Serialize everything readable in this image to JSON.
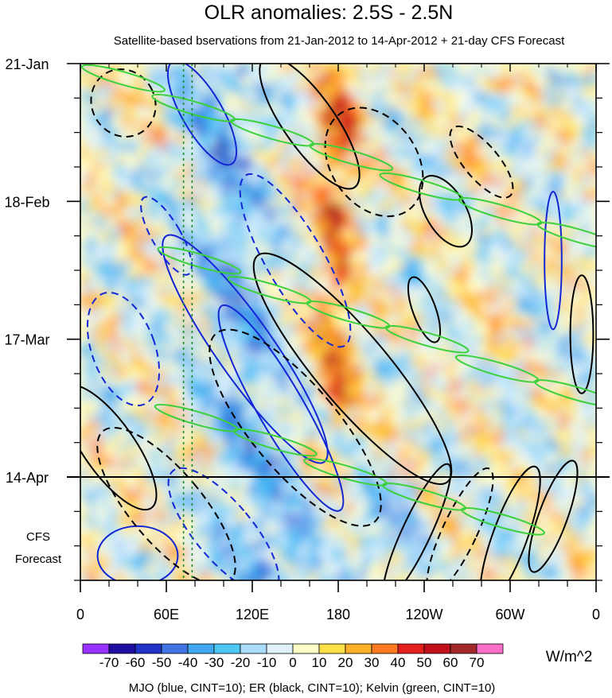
{
  "chart_data": {
    "type": "heatmap",
    "title": "OLR anomalies: 2.5S - 2.5N",
    "subtitle": "Satellite-based bservations from 21-Jan-2012 to 14-Apr-2012 + 21-day CFS Forecast",
    "x_ticks": [
      "0",
      "60E",
      "120E",
      "180",
      "120W",
      "60W",
      "0"
    ],
    "x_tick_lon": [
      0,
      60,
      120,
      180,
      240,
      300,
      360
    ],
    "xlim": [
      0,
      360
    ],
    "y_ticks": [
      "21-Jan",
      "18-Feb",
      "17-Mar",
      "14-Apr"
    ],
    "y_tick_day": [
      0,
      28,
      56,
      84
    ],
    "ylim_days": [
      0,
      105
    ],
    "forecast_boundary_day": 84,
    "forecast_label": [
      "CFS",
      "Forecast"
    ],
    "reference_lon_lines": [
      72,
      78
    ],
    "colorbar": {
      "labels": [
        "-70",
        "-60",
        "-50",
        "-40",
        "-30",
        "-20",
        "-10",
        "0",
        "10",
        "20",
        "30",
        "40",
        "50",
        "60",
        "70"
      ],
      "colors": [
        "#9a32ff",
        "#1f0fa0",
        "#2233c8",
        "#3f74e2",
        "#3fa8f0",
        "#4fc8f8",
        "#a9dcf8",
        "#dff2fb",
        "#fffdc8",
        "#ffe04a",
        "#ffaf2a",
        "#ff7a22",
        "#e4201c",
        "#c0101a",
        "#a32a2a",
        "#ff6fc8"
      ],
      "units": "W/m^2"
    },
    "footer": "MJO (blue, CINT=10); ER (black, CINT=10); Kelvin (green, CINT=10)",
    "contour_colors": {
      "mjo": "#1226d6",
      "er": "#000000",
      "kelvin": "#3ad13a"
    }
  }
}
